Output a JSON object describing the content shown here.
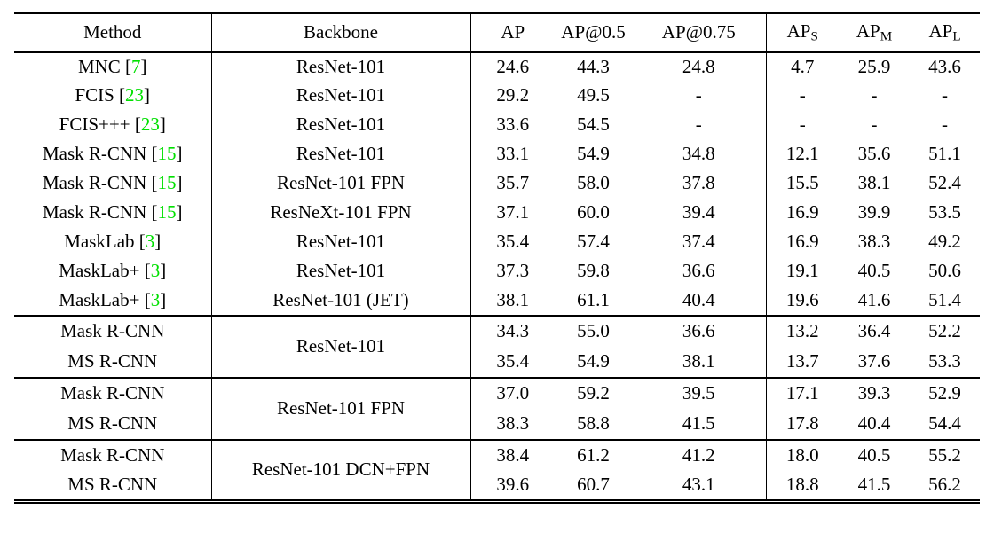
{
  "colors": {
    "background": "#ffffff",
    "text": "#000000",
    "citation": "#00e000",
    "rule": "#000000"
  },
  "table": {
    "columns": [
      {
        "key": "method",
        "label": "Method"
      },
      {
        "key": "backbone",
        "label": "Backbone"
      },
      {
        "key": "ap",
        "label": "AP"
      },
      {
        "key": "ap50",
        "label": "AP@0.5"
      },
      {
        "key": "ap75",
        "label": "AP@0.75"
      },
      {
        "key": "aps",
        "label": "AP",
        "sub": "S"
      },
      {
        "key": "apm",
        "label": "AP",
        "sub": "M"
      },
      {
        "key": "apl",
        "label": "AP",
        "sub": "L"
      }
    ],
    "sections": [
      {
        "rows": [
          {
            "method": "MNC",
            "cite": "7",
            "backbone": "ResNet-101",
            "values": [
              "24.6",
              "44.3",
              "24.8",
              "4.7",
              "25.9",
              "43.6"
            ]
          },
          {
            "method": "FCIS",
            "cite": "23",
            "backbone": "ResNet-101",
            "values": [
              "29.2",
              "49.5",
              "-",
              "-",
              "-",
              "-"
            ]
          },
          {
            "method": "FCIS+++",
            "cite": "23",
            "backbone": "ResNet-101",
            "values": [
              "33.6",
              "54.5",
              "-",
              "-",
              "-",
              "-"
            ]
          },
          {
            "method": "Mask R-CNN",
            "cite": "15",
            "backbone": "ResNet-101",
            "values": [
              "33.1",
              "54.9",
              "34.8",
              "12.1",
              "35.6",
              "51.1"
            ]
          },
          {
            "method": "Mask R-CNN",
            "cite": "15",
            "backbone": "ResNet-101 FPN",
            "values": [
              "35.7",
              "58.0",
              "37.8",
              "15.5",
              "38.1",
              "52.4"
            ]
          },
          {
            "method": "Mask R-CNN",
            "cite": "15",
            "backbone": "ResNeXt-101 FPN",
            "values": [
              "37.1",
              "60.0",
              "39.4",
              "16.9",
              "39.9",
              "53.5"
            ]
          },
          {
            "method": "MaskLab",
            "cite": "3",
            "backbone": "ResNet-101",
            "values": [
              "35.4",
              "57.4",
              "37.4",
              "16.9",
              "38.3",
              "49.2"
            ]
          },
          {
            "method": "MaskLab+",
            "cite": "3",
            "backbone": "ResNet-101",
            "values": [
              "37.3",
              "59.8",
              "36.6",
              "19.1",
              "40.5",
              "50.6"
            ]
          },
          {
            "method": "MaskLab+",
            "cite": "3",
            "backbone": "ResNet-101 (JET)",
            "values": [
              "38.1",
              "61.1",
              "40.4",
              "19.6",
              "41.6",
              "51.4"
            ]
          }
        ]
      },
      {
        "shared_backbone": "ResNet-101",
        "rows": [
          {
            "method": "Mask R-CNN",
            "values": [
              "34.3",
              "55.0",
              "36.6",
              "13.2",
              "36.4",
              "52.2"
            ]
          },
          {
            "method": "MS R-CNN",
            "values": [
              "35.4",
              "54.9",
              "38.1",
              "13.7",
              "37.6",
              "53.3"
            ]
          }
        ]
      },
      {
        "shared_backbone": "ResNet-101 FPN",
        "rows": [
          {
            "method": "Mask R-CNN",
            "values": [
              "37.0",
              "59.2",
              "39.5",
              "17.1",
              "39.3",
              "52.9"
            ]
          },
          {
            "method": "MS R-CNN",
            "values": [
              "38.3",
              "58.8",
              "41.5",
              "17.8",
              "40.4",
              "54.4"
            ]
          }
        ]
      },
      {
        "shared_backbone": "ResNet-101 DCN+FPN",
        "rows": [
          {
            "method": "Mask R-CNN",
            "values": [
              "38.4",
              "61.2",
              "41.2",
              "18.0",
              "40.5",
              "55.2"
            ]
          },
          {
            "method": "MS R-CNN",
            "values": [
              "39.6",
              "60.7",
              "43.1",
              "18.8",
              "41.5",
              "56.2"
            ]
          }
        ]
      }
    ]
  }
}
